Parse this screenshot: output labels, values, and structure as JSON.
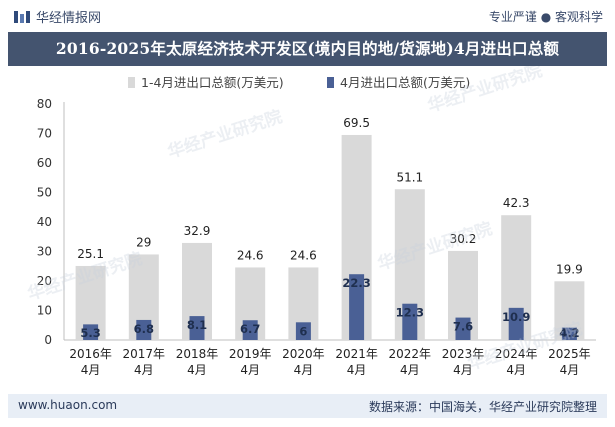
{
  "header": {
    "brand": "华经情报网",
    "tagline": "专业严谨 ● 客观科学"
  },
  "title": "2016-2025年太原经济技术开发区(境内目的地/货源地)4月进出口总额",
  "footer": {
    "website": "www.huaon.com",
    "source": "数据来源：中国海关，华经产业研究院整理"
  },
  "watermark": "华经产业研究院",
  "colors": {
    "series1": "#d9d9d9",
    "series2": "#4a6095",
    "title_bg": "#44546f",
    "footer_bg": "#e8eef6"
  },
  "chart_data": {
    "type": "bar",
    "categories": [
      "2016年\n4月",
      "2017年\n4月",
      "2018年\n4月",
      "2019年\n4月",
      "2020年\n4月",
      "2021年\n4月",
      "2022年\n4月",
      "2023年\n4月",
      "2024年\n4月",
      "2025年\n4月"
    ],
    "series": [
      {
        "name": "1-4月进出口总额(万美元)",
        "values": [
          25.1,
          29,
          32.9,
          24.6,
          24.6,
          69.5,
          51.1,
          30.2,
          42.3,
          19.9
        ]
      },
      {
        "name": "4月进出口总额(万美元)",
        "values": [
          5.3,
          6.8,
          8.1,
          6.7,
          6,
          22.3,
          12.3,
          7.6,
          10.9,
          4.2
        ]
      }
    ],
    "labels_s1": [
      "25.1",
      "29",
      "32.9",
      "24.6",
      "24.6",
      "69.5",
      "51.1",
      "30.2",
      "42.3",
      "19.9"
    ],
    "labels_s2": [
      "5.3",
      "6.8",
      "8.1",
      "6.7",
      "6",
      "22.3",
      "12.3",
      "7.6",
      "10.9",
      "4.2"
    ],
    "yticks": [
      "0",
      "10",
      "20",
      "30",
      "40",
      "50",
      "60",
      "70",
      "80"
    ],
    "ylim": [
      0,
      80
    ],
    "grid": false,
    "legend": "top-center"
  }
}
